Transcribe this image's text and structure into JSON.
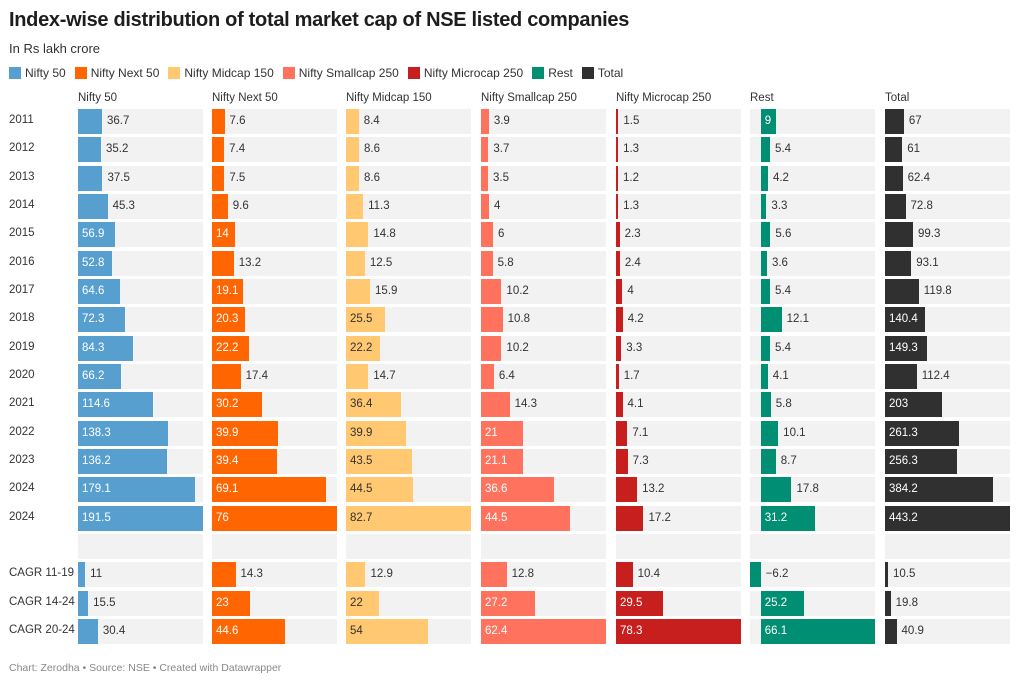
{
  "title": "Index-wise distribution of total market cap of NSE listed companies",
  "subtitle": "In Rs lakh crore",
  "footer": "Chart: Zerodha • Source: NSE • Created with Datawrapper",
  "chart_data": {
    "type": "bar",
    "title": "Index-wise distribution of total market cap of NSE listed companies",
    "subtitle": "In Rs lakh crore",
    "layout": "split bars, one panel per series, horizontal",
    "legend_placement": "top-left",
    "categories": [
      "2011",
      "2012",
      "2013",
      "2014",
      "2015",
      "2016",
      "2017",
      "2018",
      "2019",
      "2020",
      "2021",
      "2022",
      "2023",
      "2024",
      "2024",
      "",
      "CAGR 11-19",
      "CAGR 14-24",
      "CAGR 20-24"
    ],
    "series": [
      {
        "name": "Nifty 50",
        "color": "#569fcf",
        "values": [
          36.7,
          35.2,
          37.5,
          45.3,
          56.9,
          52.8,
          64.6,
          72.3,
          84.3,
          66.2,
          114.6,
          138.3,
          136.2,
          179.1,
          191.5,
          null,
          11,
          15.5,
          30.4
        ]
      },
      {
        "name": "Nifty Next 50",
        "color": "#ff6500",
        "values": [
          7.6,
          7.4,
          7.5,
          9.6,
          14,
          13.2,
          19.1,
          20.3,
          22.2,
          17.4,
          30.2,
          39.9,
          39.4,
          69.1,
          76,
          null,
          14.3,
          23,
          44.6
        ]
      },
      {
        "name": "Nifty Midcap 150",
        "color": "#ffc871",
        "values": [
          8.4,
          8.6,
          8.6,
          11.3,
          14.8,
          12.5,
          15.9,
          25.5,
          22.2,
          14.7,
          36.4,
          39.9,
          43.5,
          44.5,
          82.7,
          null,
          12.9,
          22,
          54
        ]
      },
      {
        "name": "Nifty Smallcap 250",
        "color": "#ff735e",
        "values": [
          3.9,
          3.7,
          3.5,
          4,
          6,
          5.8,
          10.2,
          10.8,
          10.2,
          6.4,
          14.3,
          21,
          21.1,
          36.6,
          44.5,
          null,
          12.8,
          27.2,
          62.4
        ]
      },
      {
        "name": "Nifty Microcap 250",
        "color": "#c71e1e",
        "values": [
          1.5,
          1.3,
          1.2,
          1.3,
          2.3,
          2.4,
          4,
          4.2,
          3.3,
          1.7,
          4.1,
          7.1,
          7.3,
          13.2,
          17.2,
          null,
          10.4,
          29.5,
          78.3
        ]
      },
      {
        "name": "Rest",
        "color": "#008f72",
        "values": [
          9,
          5.4,
          4.2,
          3.3,
          5.6,
          3.6,
          5.4,
          12.1,
          5.4,
          4.1,
          5.8,
          10.1,
          8.7,
          17.8,
          31.2,
          null,
          -6.2,
          25.2,
          66.1
        ]
      },
      {
        "name": "Total",
        "color": "#303030",
        "values": [
          67,
          61,
          62.4,
          72.8,
          99.3,
          93.1,
          119.8,
          140.4,
          149.3,
          112.4,
          203,
          261.3,
          256.3,
          384.2,
          443.2,
          null,
          10.5,
          19.8,
          40.9
        ]
      }
    ],
    "background_color": "#f2f2f2"
  }
}
